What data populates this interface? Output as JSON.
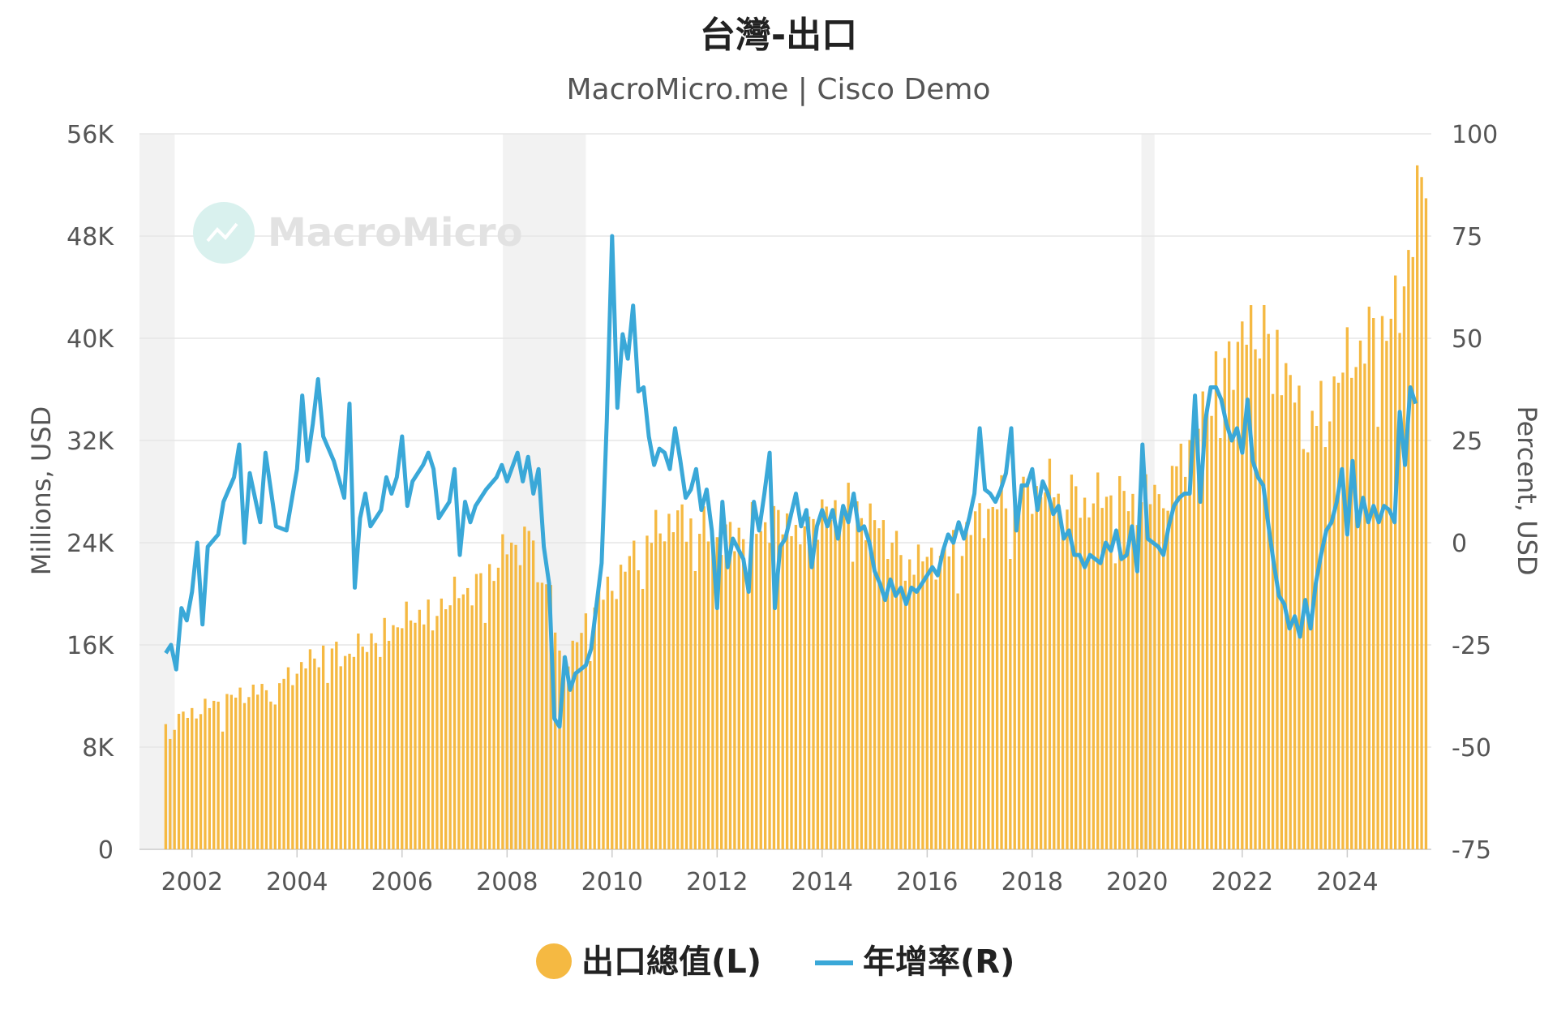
{
  "chart_data": {
    "type": "bar+line",
    "title": "台灣-出口",
    "subtitle": "MacroMicro.me | Cisco Demo",
    "watermark": "MacroMicro",
    "left_axis": {
      "label": "Millions, USD",
      "ticks": [
        "0",
        "8K",
        "16K",
        "24K",
        "32K",
        "40K",
        "48K",
        "56K"
      ],
      "range": [
        0,
        56000
      ]
    },
    "right_axis": {
      "label": "Percent, USD",
      "ticks": [
        "-75",
        "-50",
        "-25",
        "0",
        "25",
        "50",
        "75",
        "100"
      ],
      "range": [
        -75,
        100
      ]
    },
    "x_axis": {
      "ticks": [
        "2002",
        "2004",
        "2006",
        "2008",
        "2010",
        "2012",
        "2014",
        "2016",
        "2018",
        "2020",
        "2022",
        "2024"
      ],
      "range": [
        2001.0,
        2025.6
      ]
    },
    "recession_bands": [
      [
        2001.0,
        2001.67
      ],
      [
        2007.92,
        2009.5
      ],
      [
        2020.08,
        2020.33
      ]
    ],
    "legend_position": "bottom-center",
    "colors": {
      "bars": "#f5b942",
      "line": "#3aa8d8",
      "grid": "#e6e6e6",
      "band": "#f2f2f2"
    },
    "series": [
      {
        "name": "出口總值(L)",
        "axis": "left",
        "kind": "bar",
        "x_start": 2001.5,
        "step": 0.08333,
        "anchors": [
          [
            2001.5,
            9800
          ],
          [
            2001.9,
            10500
          ],
          [
            2002.5,
            11500
          ],
          [
            2003.0,
            12200
          ],
          [
            2003.5,
            12500
          ],
          [
            2004.0,
            14000
          ],
          [
            2004.5,
            15500
          ],
          [
            2005.0,
            15200
          ],
          [
            2005.5,
            16800
          ],
          [
            2006.0,
            17800
          ],
          [
            2006.5,
            18800
          ],
          [
            2007.0,
            19800
          ],
          [
            2007.5,
            20800
          ],
          [
            2008.0,
            23500
          ],
          [
            2008.5,
            24500
          ],
          [
            2008.8,
            20500
          ],
          [
            2009.0,
            15000
          ],
          [
            2009.3,
            15800
          ],
          [
            2009.7,
            19500
          ],
          [
            2010.0,
            20500
          ],
          [
            2010.5,
            23500
          ],
          [
            2011.0,
            25500
          ],
          [
            2011.5,
            25800
          ],
          [
            2012.0,
            24000
          ],
          [
            2012.5,
            25000
          ],
          [
            2013.0,
            25500
          ],
          [
            2013.5,
            25800
          ],
          [
            2014.0,
            26000
          ],
          [
            2014.5,
            27000
          ],
          [
            2015.0,
            25500
          ],
          [
            2015.5,
            23500
          ],
          [
            2016.0,
            22500
          ],
          [
            2016.5,
            23500
          ],
          [
            2017.0,
            26000
          ],
          [
            2017.5,
            27500
          ],
          [
            2018.0,
            28000
          ],
          [
            2018.5,
            28500
          ],
          [
            2019.0,
            27000
          ],
          [
            2019.5,
            27800
          ],
          [
            2020.0,
            27000
          ],
          [
            2020.5,
            28500
          ],
          [
            2021.0,
            32000
          ],
          [
            2021.5,
            37000
          ],
          [
            2022.0,
            40000
          ],
          [
            2022.5,
            41000
          ],
          [
            2022.9,
            37000
          ],
          [
            2023.2,
            32000
          ],
          [
            2023.5,
            35000
          ],
          [
            2024.0,
            38000
          ],
          [
            2024.5,
            40500
          ],
          [
            2025.0,
            42000
          ],
          [
            2025.2,
            48000
          ],
          [
            2025.5,
            53000
          ]
        ]
      },
      {
        "name": "年增率(R)",
        "axis": "right",
        "kind": "line",
        "points": [
          [
            2001.5,
            -27
          ],
          [
            2001.6,
            -25
          ],
          [
            2001.7,
            -31
          ],
          [
            2001.8,
            -16
          ],
          [
            2001.9,
            -19
          ],
          [
            2002.0,
            -12
          ],
          [
            2002.1,
            0
          ],
          [
            2002.2,
            -20
          ],
          [
            2002.3,
            -1
          ],
          [
            2002.5,
            2
          ],
          [
            2002.6,
            10
          ],
          [
            2002.8,
            16
          ],
          [
            2002.9,
            24
          ],
          [
            2003.0,
            0
          ],
          [
            2003.1,
            17
          ],
          [
            2003.3,
            5
          ],
          [
            2003.4,
            22
          ],
          [
            2003.6,
            4
          ],
          [
            2003.8,
            3
          ],
          [
            2004.0,
            18
          ],
          [
            2004.1,
            36
          ],
          [
            2004.2,
            20
          ],
          [
            2004.3,
            29
          ],
          [
            2004.4,
            40
          ],
          [
            2004.5,
            26
          ],
          [
            2004.7,
            20
          ],
          [
            2004.9,
            11
          ],
          [
            2005.0,
            34
          ],
          [
            2005.1,
            -11
          ],
          [
            2005.2,
            6
          ],
          [
            2005.3,
            12
          ],
          [
            2005.4,
            4
          ],
          [
            2005.6,
            8
          ],
          [
            2005.7,
            16
          ],
          [
            2005.8,
            12
          ],
          [
            2005.9,
            16
          ],
          [
            2006.0,
            26
          ],
          [
            2006.1,
            9
          ],
          [
            2006.2,
            15
          ],
          [
            2006.4,
            19
          ],
          [
            2006.5,
            22
          ],
          [
            2006.6,
            18
          ],
          [
            2006.7,
            6
          ],
          [
            2006.9,
            10
          ],
          [
            2007.0,
            18
          ],
          [
            2007.1,
            -3
          ],
          [
            2007.2,
            10
          ],
          [
            2007.3,
            5
          ],
          [
            2007.4,
            9
          ],
          [
            2007.6,
            13
          ],
          [
            2007.8,
            16
          ],
          [
            2007.9,
            19
          ],
          [
            2008.0,
            15
          ],
          [
            2008.2,
            22
          ],
          [
            2008.3,
            15
          ],
          [
            2008.4,
            21
          ],
          [
            2008.5,
            12
          ],
          [
            2008.6,
            18
          ],
          [
            2008.7,
            -1
          ],
          [
            2008.8,
            -10
          ],
          [
            2008.9,
            -43
          ],
          [
            2009.0,
            -45
          ],
          [
            2009.1,
            -28
          ],
          [
            2009.2,
            -36
          ],
          [
            2009.3,
            -32
          ],
          [
            2009.5,
            -30
          ],
          [
            2009.6,
            -26
          ],
          [
            2009.8,
            -5
          ],
          [
            2009.9,
            30
          ],
          [
            2010.0,
            75
          ],
          [
            2010.1,
            33
          ],
          [
            2010.2,
            51
          ],
          [
            2010.3,
            45
          ],
          [
            2010.4,
            58
          ],
          [
            2010.5,
            37
          ],
          [
            2010.6,
            38
          ],
          [
            2010.7,
            26
          ],
          [
            2010.8,
            19
          ],
          [
            2010.9,
            23
          ],
          [
            2011.0,
            22
          ],
          [
            2011.1,
            18
          ],
          [
            2011.2,
            28
          ],
          [
            2011.3,
            20
          ],
          [
            2011.4,
            11
          ],
          [
            2011.5,
            13
          ],
          [
            2011.6,
            18
          ],
          [
            2011.7,
            8
          ],
          [
            2011.8,
            13
          ],
          [
            2011.9,
            3
          ],
          [
            2012.0,
            -16
          ],
          [
            2012.1,
            10
          ],
          [
            2012.2,
            -6
          ],
          [
            2012.3,
            1
          ],
          [
            2012.5,
            -4
          ],
          [
            2012.6,
            -12
          ],
          [
            2012.7,
            10
          ],
          [
            2012.8,
            3
          ],
          [
            2012.9,
            12
          ],
          [
            2013.0,
            22
          ],
          [
            2013.1,
            -16
          ],
          [
            2013.2,
            -1
          ],
          [
            2013.3,
            1
          ],
          [
            2013.5,
            12
          ],
          [
            2013.6,
            4
          ],
          [
            2013.7,
            8
          ],
          [
            2013.8,
            -6
          ],
          [
            2013.9,
            4
          ],
          [
            2014.0,
            8
          ],
          [
            2014.1,
            4
          ],
          [
            2014.2,
            8
          ],
          [
            2014.3,
            1
          ],
          [
            2014.4,
            9
          ],
          [
            2014.5,
            5
          ],
          [
            2014.6,
            12
          ],
          [
            2014.7,
            3
          ],
          [
            2014.8,
            4
          ],
          [
            2014.9,
            0
          ],
          [
            2015.0,
            -7
          ],
          [
            2015.1,
            -10
          ],
          [
            2015.2,
            -14
          ],
          [
            2015.3,
            -9
          ],
          [
            2015.4,
            -13
          ],
          [
            2015.5,
            -11
          ],
          [
            2015.6,
            -15
          ],
          [
            2015.7,
            -11
          ],
          [
            2015.8,
            -12
          ],
          [
            2015.9,
            -10
          ],
          [
            2016.0,
            -8
          ],
          [
            2016.1,
            -6
          ],
          [
            2016.2,
            -8
          ],
          [
            2016.3,
            -2
          ],
          [
            2016.4,
            2
          ],
          [
            2016.5,
            0
          ],
          [
            2016.6,
            5
          ],
          [
            2016.7,
            1
          ],
          [
            2016.8,
            6
          ],
          [
            2016.9,
            12
          ],
          [
            2017.0,
            28
          ],
          [
            2017.1,
            13
          ],
          [
            2017.2,
            12
          ],
          [
            2017.3,
            10
          ],
          [
            2017.4,
            13
          ],
          [
            2017.5,
            17
          ],
          [
            2017.6,
            28
          ],
          [
            2017.7,
            3
          ],
          [
            2017.8,
            14
          ],
          [
            2017.9,
            14
          ],
          [
            2018.0,
            18
          ],
          [
            2018.1,
            8
          ],
          [
            2018.2,
            15
          ],
          [
            2018.3,
            12
          ],
          [
            2018.4,
            7
          ],
          [
            2018.5,
            9
          ],
          [
            2018.6,
            1
          ],
          [
            2018.7,
            3
          ],
          [
            2018.8,
            -3
          ],
          [
            2018.9,
            -3
          ],
          [
            2019.0,
            -6
          ],
          [
            2019.1,
            -3
          ],
          [
            2019.3,
            -5
          ],
          [
            2019.4,
            0
          ],
          [
            2019.5,
            -2
          ],
          [
            2019.6,
            3
          ],
          [
            2019.7,
            -4
          ],
          [
            2019.8,
            -3
          ],
          [
            2019.9,
            4
          ],
          [
            2020.0,
            -7
          ],
          [
            2020.1,
            24
          ],
          [
            2020.2,
            1
          ],
          [
            2020.3,
            0
          ],
          [
            2020.4,
            -1
          ],
          [
            2020.5,
            -3
          ],
          [
            2020.6,
            4
          ],
          [
            2020.7,
            9
          ],
          [
            2020.8,
            11
          ],
          [
            2020.9,
            12
          ],
          [
            2021.0,
            12
          ],
          [
            2021.1,
            36
          ],
          [
            2021.2,
            10
          ],
          [
            2021.3,
            30
          ],
          [
            2021.4,
            38
          ],
          [
            2021.5,
            38
          ],
          [
            2021.6,
            35
          ],
          [
            2021.7,
            29
          ],
          [
            2021.8,
            25
          ],
          [
            2021.9,
            28
          ],
          [
            2022.0,
            22
          ],
          [
            2022.1,
            35
          ],
          [
            2022.2,
            20
          ],
          [
            2022.3,
            16
          ],
          [
            2022.4,
            14
          ],
          [
            2022.5,
            4
          ],
          [
            2022.6,
            -5
          ],
          [
            2022.7,
            -13
          ],
          [
            2022.8,
            -15
          ],
          [
            2022.9,
            -21
          ],
          [
            2023.0,
            -18
          ],
          [
            2023.1,
            -23
          ],
          [
            2023.2,
            -14
          ],
          [
            2023.3,
            -21
          ],
          [
            2023.4,
            -10
          ],
          [
            2023.5,
            -3
          ],
          [
            2023.6,
            3
          ],
          [
            2023.7,
            5
          ],
          [
            2023.8,
            10
          ],
          [
            2023.9,
            18
          ],
          [
            2024.0,
            2
          ],
          [
            2024.1,
            20
          ],
          [
            2024.2,
            4
          ],
          [
            2024.3,
            11
          ],
          [
            2024.4,
            5
          ],
          [
            2024.5,
            9
          ],
          [
            2024.6,
            5
          ],
          [
            2024.7,
            9
          ],
          [
            2024.8,
            8
          ],
          [
            2024.9,
            5
          ],
          [
            2025.0,
            32
          ],
          [
            2025.1,
            19
          ],
          [
            2025.2,
            38
          ],
          [
            2025.3,
            34
          ]
        ]
      }
    ]
  }
}
